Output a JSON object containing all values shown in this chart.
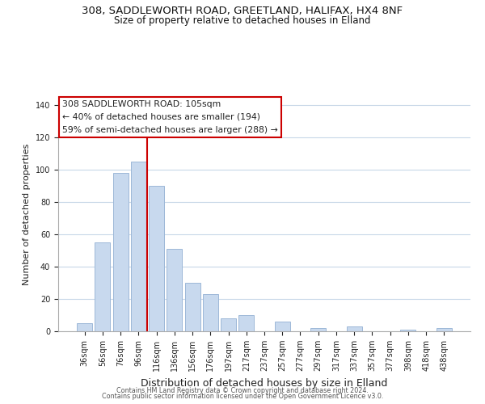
{
  "title": "308, SADDLEWORTH ROAD, GREETLAND, HALIFAX, HX4 8NF",
  "subtitle": "Size of property relative to detached houses in Elland",
  "xlabel": "Distribution of detached houses by size in Elland",
  "ylabel": "Number of detached properties",
  "categories": [
    "36sqm",
    "56sqm",
    "76sqm",
    "96sqm",
    "116sqm",
    "136sqm",
    "156sqm",
    "176sqm",
    "197sqm",
    "217sqm",
    "237sqm",
    "257sqm",
    "277sqm",
    "297sqm",
    "317sqm",
    "337sqm",
    "357sqm",
    "377sqm",
    "398sqm",
    "418sqm",
    "438sqm"
  ],
  "values": [
    5,
    55,
    98,
    105,
    90,
    51,
    30,
    23,
    8,
    10,
    0,
    6,
    0,
    2,
    0,
    3,
    0,
    0,
    1,
    0,
    2
  ],
  "bar_color": "#c8d9ee",
  "bar_edge_color": "#9db8d8",
  "vline_x_index": 3.5,
  "vline_color": "#cc0000",
  "annotation_line1": "308 SADDLEWORTH ROAD: 105sqm",
  "annotation_line2": "← 40% of detached houses are smaller (194)",
  "annotation_line3": "59% of semi-detached houses are larger (288) →",
  "ylim": [
    0,
    145
  ],
  "yticks": [
    0,
    20,
    40,
    60,
    80,
    100,
    120,
    140
  ],
  "footer1": "Contains HM Land Registry data © Crown copyright and database right 2024.",
  "footer2": "Contains public sector information licensed under the Open Government Licence v3.0.",
  "bg_color": "#ffffff",
  "grid_color": "#c8d8e8",
  "title_fontsize": 9.5,
  "subtitle_fontsize": 8.5
}
